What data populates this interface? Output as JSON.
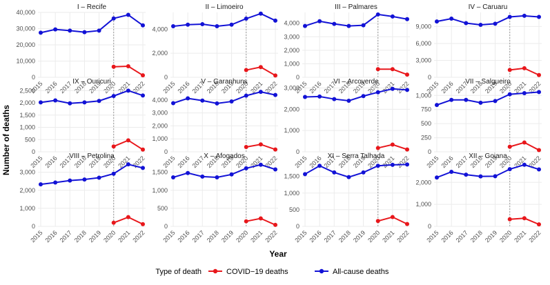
{
  "chart_data": {
    "type": "line",
    "ylabel": "Number of deaths",
    "xlabel": "Year",
    "x": [
      2015,
      2016,
      2017,
      2018,
      2019,
      2020,
      2021,
      2022
    ],
    "legend": {
      "title": "Type of death",
      "position": "bottom",
      "entries": [
        {
          "name": "COVID−19 deaths",
          "color": "#e8171b"
        },
        {
          "name": "All-cause deaths",
          "color": "#1212d6"
        }
      ]
    },
    "colors": {
      "covid": "#e8171b",
      "allcause": "#1212d6",
      "vline": "#999999",
      "grid": "#ebebeb",
      "text": "#4d4d4d"
    },
    "vline_x": 2020,
    "panels": [
      {
        "title": "I – Recife",
        "ylim": [
          0,
          40000
        ],
        "ticks": [
          0,
          10000,
          20000,
          30000,
          40000
        ],
        "tick_labels": [
          "0",
          "10,000",
          "20,000",
          "30,000",
          "40,000"
        ],
        "allcause": [
          27500,
          29500,
          28800,
          27800,
          28800,
          36300,
          38500,
          32000
        ],
        "covid": [
          6500,
          6800,
          1200
        ]
      },
      {
        "title": "II – Limoeiro",
        "ylim": [
          0,
          5400
        ],
        "ticks": [
          0,
          2000,
          4000
        ],
        "tick_labels": [
          "0",
          "2,000",
          "4,000"
        ],
        "allcause": [
          4250,
          4380,
          4420,
          4250,
          4380,
          4880,
          5300,
          4720
        ],
        "covid": [
          600,
          850,
          150
        ]
      },
      {
        "title": "III – Palmares",
        "ylim": [
          0,
          4800
        ],
        "ticks": [
          0,
          1000,
          2000,
          3000,
          4000
        ],
        "tick_labels": [
          "0",
          "1,000",
          "2,000",
          "3,000",
          "4,000"
        ],
        "allcause": [
          3800,
          4150,
          3950,
          3800,
          3850,
          4650,
          4500,
          4300
        ],
        "covid": [
          600,
          600,
          200
        ]
      },
      {
        "title": "IV – Caruaru",
        "ylim": [
          0,
          11500
        ],
        "ticks": [
          0,
          3000,
          6000,
          9000
        ],
        "tick_labels": [
          "0",
          "3,000",
          "6,000",
          "9,000"
        ],
        "allcause": [
          9900,
          10400,
          9600,
          9300,
          9500,
          10700,
          10900,
          10700
        ],
        "covid": [
          1300,
          1600,
          400
        ]
      },
      {
        "title": "IX – Ouricuri",
        "ylim": [
          0,
          2650
        ],
        "ticks": [
          0,
          500,
          1000,
          1500,
          2000,
          2500
        ],
        "tick_labels": [
          "0",
          "500",
          "1,000",
          "1,500",
          "2,000",
          "2,500"
        ],
        "allcause": [
          2020,
          2100,
          1980,
          2020,
          2080,
          2280,
          2500,
          2300
        ],
        "covid": [
          220,
          470,
          90
        ]
      },
      {
        "title": "V – Garanhuns",
        "ylim": [
          0,
          5000
        ],
        "ticks": [
          0,
          1000,
          2000,
          3000,
          4000
        ],
        "tick_labels": [
          "0",
          "1,000",
          "2,000",
          "3,000",
          "4,000"
        ],
        "allcause": [
          3750,
          4120,
          3950,
          3730,
          3880,
          4330,
          4620,
          4380
        ],
        "covid": [
          370,
          570,
          180
        ]
      },
      {
        "title": "VI – Arcoverde",
        "ylim": [
          0,
          3050
        ],
        "ticks": [
          0,
          1000,
          2000,
          3000
        ],
        "tick_labels": [
          "0",
          "1,000",
          "2,000",
          "3,000"
        ],
        "allcause": [
          2580,
          2600,
          2480,
          2400,
          2620,
          2800,
          2960,
          2910
        ],
        "covid": [
          180,
          340,
          110
        ]
      },
      {
        "title": "VII – Salgueiro",
        "ylim": [
          0,
          1150
        ],
        "ticks": [
          0,
          250,
          500,
          750,
          1000
        ],
        "tick_labels": [
          "0",
          "250",
          "500",
          "750",
          "1,000"
        ],
        "allcause": [
          830,
          920,
          920,
          870,
          900,
          1020,
          1040,
          1060
        ],
        "covid": [
          90,
          165,
          30
        ]
      },
      {
        "title": "VIII – Petrolina",
        "ylim": [
          0,
          3600
        ],
        "ticks": [
          0,
          1000,
          2000,
          3000
        ],
        "tick_labels": [
          "0",
          "1,000",
          "2,000",
          "3,000"
        ],
        "allcause": [
          2330,
          2430,
          2540,
          2600,
          2700,
          2920,
          3440,
          3240
        ],
        "covid": [
          200,
          510,
          120
        ]
      },
      {
        "title": "X – Afogados",
        "ylim": [
          0,
          1800
        ],
        "ticks": [
          0,
          500,
          1000,
          1500
        ],
        "tick_labels": [
          "0",
          "500",
          "1,000",
          "1,500"
        ],
        "allcause": [
          1360,
          1480,
          1380,
          1360,
          1440,
          1610,
          1710,
          1580
        ],
        "covid": [
          140,
          220,
          40
        ]
      },
      {
        "title": "XI – Serra Talhada",
        "ylim": [
          0,
          1950
        ],
        "ticks": [
          0,
          500,
          1000,
          1500
        ],
        "tick_labels": [
          "0",
          "500",
          "1,000",
          "1,500"
        ],
        "allcause": [
          1570,
          1820,
          1620,
          1480,
          1620,
          1820,
          1850,
          1860
        ],
        "covid": [
          160,
          280,
          70
        ]
      },
      {
        "title": "XII – Goiana",
        "ylim": [
          0,
          2950
        ],
        "ticks": [
          0,
          1000,
          2000
        ],
        "tick_labels": [
          "0",
          "1,000",
          "2,000"
        ],
        "allcause": [
          2220,
          2480,
          2350,
          2270,
          2280,
          2600,
          2800,
          2590
        ],
        "covid": [
          320,
          370,
          90
        ]
      }
    ]
  }
}
